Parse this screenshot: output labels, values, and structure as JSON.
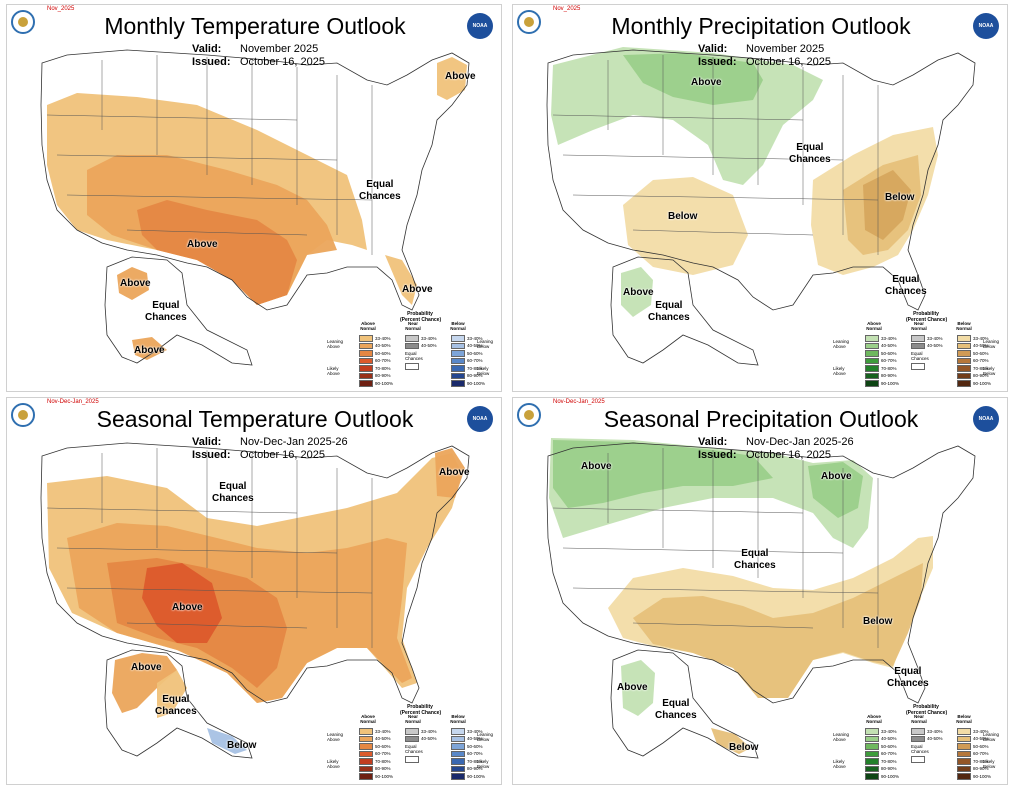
{
  "panels": [
    {
      "id": "monthly-temp",
      "small_id": "Nov_2025",
      "title": "Monthly Temperature Outlook",
      "valid_label": "Valid:",
      "valid": "November 2025",
      "issued_label": "Issued:",
      "issued": "October 16, 2025",
      "labels": {
        "above_sw": "Above",
        "above_ne": "Above",
        "equal": "Equal\nChances",
        "above_fl": "Above",
        "above_ak_w": "Above",
        "above_ak_s": "Above",
        "equal_ak": "Equal\nChances"
      }
    },
    {
      "id": "monthly-precip",
      "small_id": "Nov_2025",
      "title": "Monthly Precipitation Outlook",
      "valid_label": "Valid:",
      "valid": "November 2025",
      "issued_label": "Issued:",
      "issued": "October 16, 2025",
      "labels": {
        "above_n": "Above",
        "equal": "Equal\nChances",
        "below_sw": "Below",
        "below_se": "Below",
        "equal_fl": "Equal\nChances",
        "above_ak": "Above",
        "equal_ak": "Equal\nChances"
      }
    },
    {
      "id": "seasonal-temp",
      "small_id": "Nov-Dec-Jan_2025",
      "title": "Seasonal Temperature Outlook",
      "valid_label": "Valid:",
      "valid": "Nov-Dec-Jan 2025-26",
      "issued_label": "Issued:",
      "issued": "October 16, 2025",
      "labels": {
        "above_ne": "Above",
        "equal_n": "Equal\nChances",
        "above_sw": "Above",
        "above_ak": "Above",
        "equal_ak": "Equal\nChances",
        "below_ak": "Below"
      }
    },
    {
      "id": "seasonal-precip",
      "small_id": "Nov-Dec-Jan_2025",
      "title": "Seasonal Precipitation Outlook",
      "valid_label": "Valid:",
      "valid": "Nov-Dec-Jan 2025-26",
      "issued_label": "Issued:",
      "issued": "October 16, 2025",
      "labels": {
        "above_nw": "Above",
        "above_gl": "Above",
        "equal_c": "Equal\nChances",
        "below_se": "Below",
        "equal_fl": "Equal\nChances",
        "above_ak": "Above",
        "equal_ak": "Equal\nChances",
        "below_ak": "Below"
      }
    }
  ],
  "legend": {
    "title": "Probability\n(Percent Chance)",
    "above_head": "Above\nNormal",
    "near_head": "Near\nNormal",
    "below_head": "Below\nNormal",
    "leaning_above": "Leaning\nAbove",
    "likely_above": "Likely\nAbove",
    "leaning_below": "Leaning\nBelow",
    "likely_below": "Likely\nBelow",
    "equal": "Equal\nChances",
    "ranges": [
      "33-40%",
      "40-50%",
      "50-60%",
      "60-70%",
      "70-80%",
      "80-90%",
      "90-100%"
    ],
    "near_ranges": [
      "33-40%",
      "40-50%"
    ],
    "temp_above_colors": [
      "#f0c27a",
      "#eba55b",
      "#e58743",
      "#dc5a2c",
      "#c13d1f",
      "#993018",
      "#6e2012"
    ],
    "temp_below_colors": [
      "#c6d7ee",
      "#a7c1e4",
      "#7ea5d8",
      "#5a88c8",
      "#3a68b1",
      "#24468f",
      "#1a2a6b"
    ],
    "precip_above_colors": [
      "#c3e1b3",
      "#9bcf8a",
      "#6fb85f",
      "#3f9c3d",
      "#23802b",
      "#17611f",
      "#0d4414"
    ],
    "precip_below_colors": [
      "#f2dca6",
      "#e6c07a",
      "#d19b55",
      "#b6773a",
      "#935627",
      "#723d1a",
      "#522710"
    ],
    "near_colors": [
      "#c8c8c8",
      "#8c8c8c"
    ]
  },
  "colors": {
    "t1": "#f0c27a",
    "t2": "#eba55b",
    "t3": "#e58743",
    "t4": "#dc5a2c",
    "p_above1": "#c3e1b3",
    "p_above2": "#9bcf8a",
    "p_below1": "#f2dca6",
    "p_below2": "#e6c07a",
    "p_below3": "#d6a65e",
    "tb1": "#a7c1e4"
  }
}
